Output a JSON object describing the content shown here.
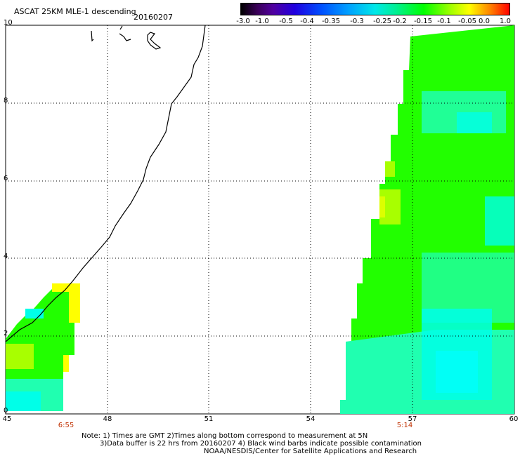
{
  "header": {
    "title": "ASCAT 25KM MLE-1 descending",
    "date": "20160207"
  },
  "colorbar": {
    "ticks": [
      "-3.0",
      "-1.0",
      "-0.5",
      "-0.4",
      "-0.35",
      "-0.3",
      "-0.25",
      "-0.2",
      "-0.15",
      "-0.1",
      "-0.05",
      "0.0",
      "1.0"
    ],
    "colors": [
      "#000000",
      "#5000a0",
      "#0050ff",
      "#00a0ff",
      "#00e8e8",
      "#00ff00",
      "#ffff00",
      "#ff0000"
    ]
  },
  "map": {
    "longitude_ticks": [
      "45",
      "48",
      "51",
      "54",
      "57",
      "60"
    ],
    "latitude_ticks": [
      "0",
      "2",
      "4",
      "6",
      "8",
      "10"
    ],
    "pass_times": [
      {
        "label": "6:55",
        "lon": 46.8
      },
      {
        "label": "5:14",
        "lon": 56.6
      }
    ],
    "swath_colors": {
      "green": "#22ff00",
      "cyan_green": "#20ffb0",
      "cyan": "#00ffe8",
      "yellow_green": "#a8ff00",
      "yellow": "#ffff00"
    }
  },
  "notes": {
    "line1": "Note: 1) Times are GMT 2)Times along bottom correspond to measurement at 5N",
    "line2": "3)Data buffer is 22 hrs from 20160207 4) Black wind barbs indicate possible contamination",
    "line3": "NOAA/NESDIS/Center for Satellite Applications and Research"
  }
}
